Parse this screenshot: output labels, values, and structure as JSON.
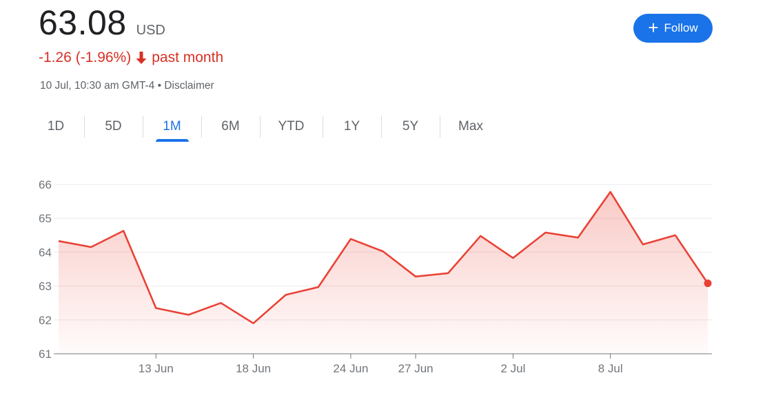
{
  "header": {
    "price": "63.08",
    "currency": "USD",
    "change_text": "-1.26 (-1.96%)",
    "period_text": "past month",
    "timestamp": "10 Jul, 10:30 am GMT-4",
    "separator": "•",
    "disclaimer": "Disclaimer"
  },
  "follow_button": {
    "label": "Follow",
    "icon": "plus-icon",
    "color": "#1a73e8"
  },
  "tabs": [
    {
      "label": "1D",
      "active": false
    },
    {
      "label": "5D",
      "active": false
    },
    {
      "label": "1M",
      "active": true
    },
    {
      "label": "6M",
      "active": false
    },
    {
      "label": "YTD",
      "active": false
    },
    {
      "label": "1Y",
      "active": false
    },
    {
      "label": "5Y",
      "active": false
    },
    {
      "label": "Max",
      "active": false
    }
  ],
  "colors": {
    "negative": "#d93025",
    "line": "#e94235",
    "accent": "#1a73e8"
  },
  "chart_data": {
    "type": "area",
    "ylim": [
      61,
      66
    ],
    "yticks": [
      "61",
      "62",
      "63",
      "64",
      "65",
      "66"
    ],
    "xticks": [
      "13 Jun",
      "18 Jun",
      "24 Jun",
      "27 Jun",
      "2 Jul",
      "8 Jul"
    ],
    "grid": true,
    "series": [
      {
        "values": [
          64.33,
          64.15,
          64.63,
          62.35,
          62.15,
          62.5,
          61.9,
          62.74,
          62.97,
          64.39,
          64.02,
          63.28,
          63.38,
          64.48,
          63.83,
          64.58,
          64.43,
          65.78,
          64.23,
          64.5,
          63.08
        ]
      }
    ],
    "last_value": 63.08
  }
}
